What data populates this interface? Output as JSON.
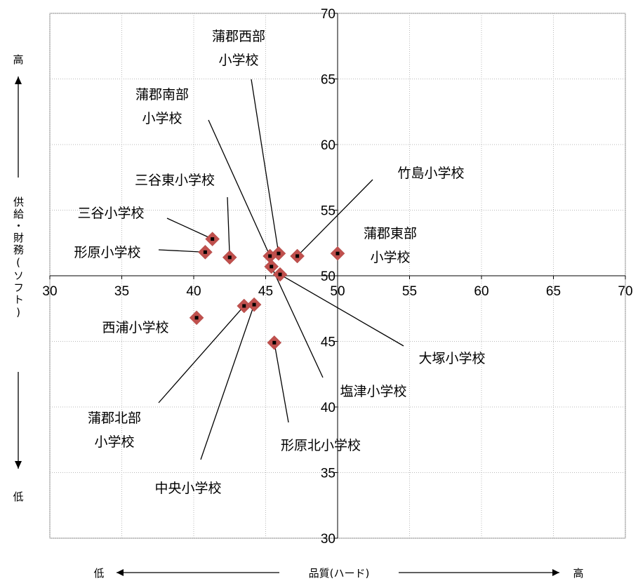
{
  "chart_data": {
    "type": "scatter",
    "xlim": [
      30,
      70
    ],
    "ylim": [
      30,
      70
    ],
    "x_ticks": [
      "30",
      "35",
      "40",
      "45",
      "50",
      "55",
      "60",
      "65",
      "70"
    ],
    "y_ticks": [
      "30",
      "35",
      "40",
      "45",
      "50",
      "55",
      "60",
      "65",
      "70"
    ],
    "grid": true,
    "xlabel": "品質(ハード)",
    "x_low": "低",
    "x_high": "高",
    "ylabel": "供給・財務(ソフト)",
    "y_high": "高",
    "y_low": "低",
    "points": [
      {
        "label": "蒲郡西部\n小学校",
        "x": 45.9,
        "y": 51.7
      },
      {
        "label": "蒲郡南部\n小学校",
        "x": 45.3,
        "y": 51.5
      },
      {
        "label": "竹島小学校",
        "x": 47.2,
        "y": 51.5
      },
      {
        "label": "蒲郡東部\n小学校",
        "x": 50.0,
        "y": 51.7
      },
      {
        "label": "三谷東小学校",
        "x": 42.5,
        "y": 51.4
      },
      {
        "label": "三谷小学校",
        "x": 41.3,
        "y": 52.8
      },
      {
        "label": "形原小学校",
        "x": 40.8,
        "y": 51.8
      },
      {
        "label": "大塚小学校",
        "x": 46.0,
        "y": 50.1
      },
      {
        "label": "塩津小学校",
        "x": 45.4,
        "y": 50.7
      },
      {
        "label": "西浦小学校",
        "x": 40.2,
        "y": 46.8
      },
      {
        "label": "蒲郡北部\n小学校",
        "x": 43.5,
        "y": 47.7
      },
      {
        "label": "中央小学校",
        "x": 44.2,
        "y": 47.8
      },
      {
        "label": "形原北小学校",
        "x": 45.6,
        "y": 44.9
      }
    ]
  }
}
